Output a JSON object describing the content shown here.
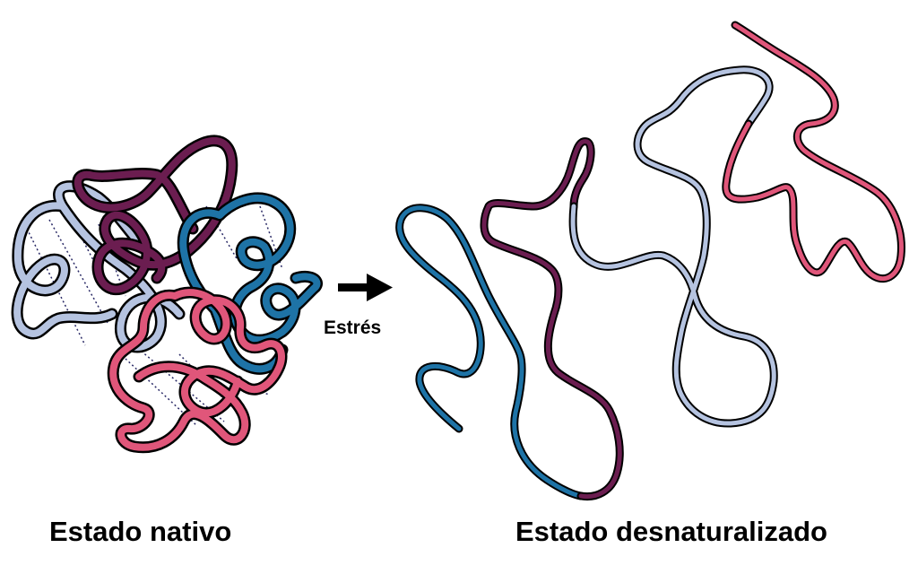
{
  "labels": {
    "native": "Estado nativo",
    "denatured": "Estado desnaturalizado",
    "stress": "Estrés"
  },
  "colors": {
    "dark_purple": "#6b1d50",
    "blue": "#1e73a6",
    "light_blue": "#b5c3e0",
    "pink": "#e0567a",
    "outline": "#000000",
    "hbond": "#2a2a66"
  }
}
